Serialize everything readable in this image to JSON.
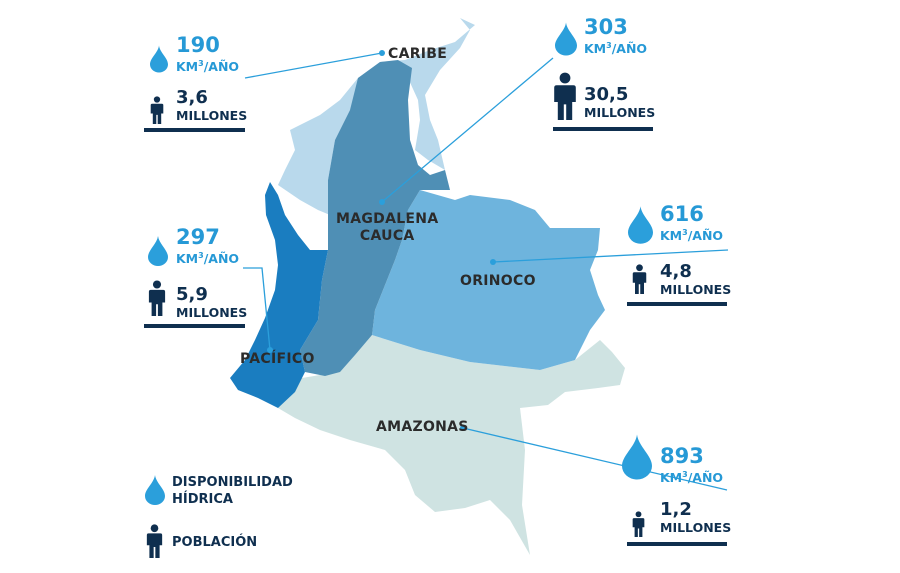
{
  "colors": {
    "caribe": "#b9d9ec",
    "magdalena": "#4f8fb5",
    "pacifico": "#1a7dc0",
    "orinoco": "#6eb4dd",
    "amazonas": "#cfe3e2",
    "drop": "#2b9fdb",
    "navy": "#0f2f4f",
    "leader": "#2b9fdb"
  },
  "regions": {
    "caribe": "CARIBE",
    "magdalena_line1": "MAGDALENA",
    "magdalena_line2": "CAUCA",
    "orinoco": "ORINOCO",
    "pacifico": "PACÍFICO",
    "amazonas": "AMAZONAS"
  },
  "stats": {
    "caribe": {
      "volume": "190",
      "volume_unit_pre": "KM",
      "volume_unit_sup": "3",
      "volume_unit_post": "/AÑO",
      "population": "3,6",
      "population_unit": "MILLONES"
    },
    "magdalena": {
      "volume": "303",
      "volume_unit_pre": "KM",
      "volume_unit_sup": "3",
      "volume_unit_post": "/AÑO",
      "population": "30,5",
      "population_unit": "MILLONES"
    },
    "orinoco": {
      "volume": "616",
      "volume_unit_pre": "KM",
      "volume_unit_sup": "3",
      "volume_unit_post": "/AÑO",
      "population": "4,8",
      "population_unit": "MILLONES"
    },
    "pacifico": {
      "volume": "297",
      "volume_unit_pre": "KM",
      "volume_unit_sup": "3",
      "volume_unit_post": "/AÑO",
      "population": "5,9",
      "population_unit": "MILLONES"
    },
    "amazonas": {
      "volume": "893",
      "volume_unit_pre": "KM",
      "volume_unit_sup": "3",
      "volume_unit_post": "/AÑO",
      "population": "1,2",
      "population_unit": "MILLONES"
    }
  },
  "legend": {
    "water_line1": "DISPONIBILIDAD",
    "water_line2": "HÍDRICA",
    "population": "POBLACIÓN"
  },
  "icons": [
    "water-drop-icon",
    "person-icon"
  ]
}
